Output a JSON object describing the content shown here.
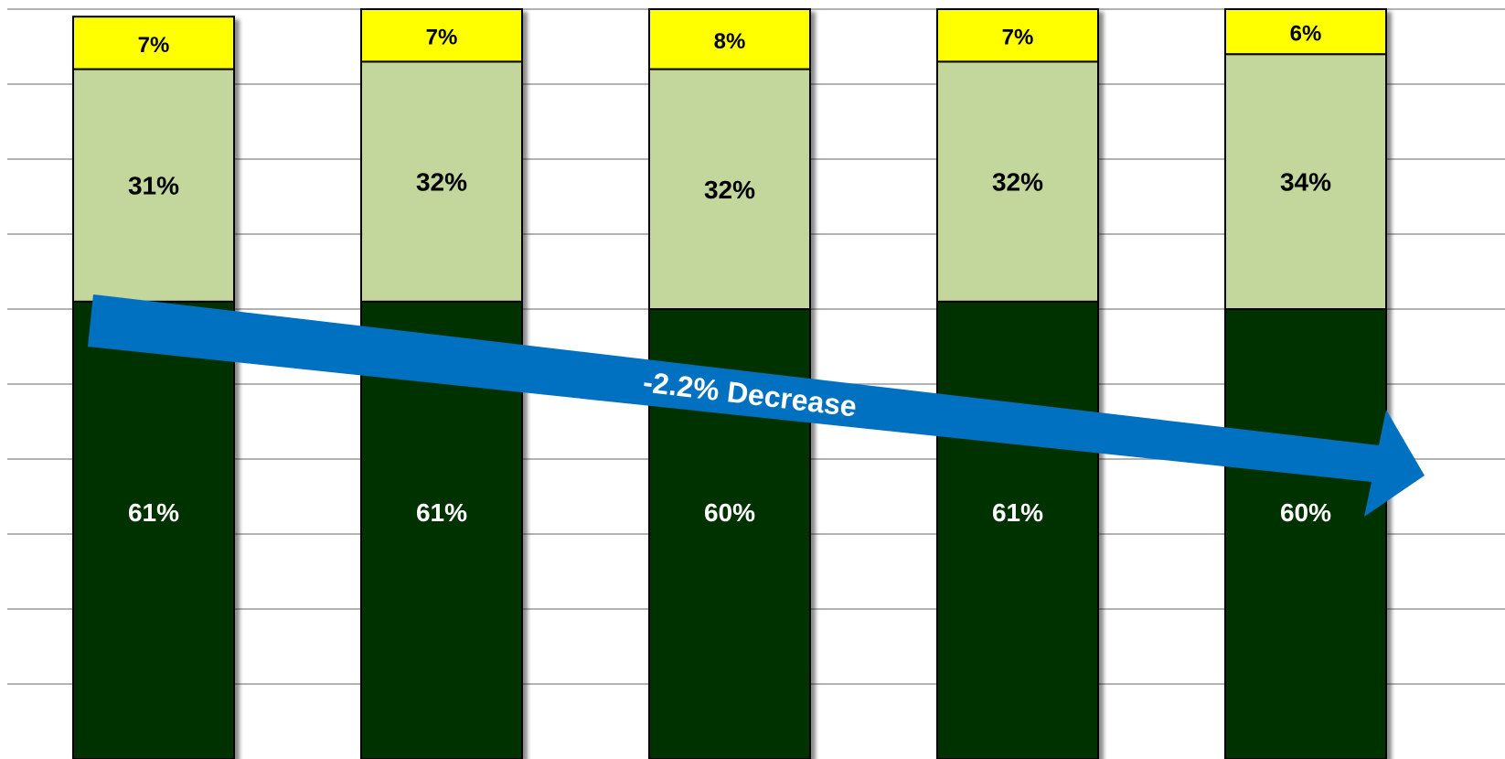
{
  "chart_data": {
    "type": "bar",
    "stacked": true,
    "orientation": "vertical",
    "ylim": [
      0,
      100
    ],
    "grid": true,
    "categories": [
      "",
      "",
      "",
      "",
      ""
    ],
    "series": [
      {
        "values": [
          61,
          61,
          60,
          61,
          60
        ],
        "labels": [
          "61%",
          "61%",
          "60%",
          "61%",
          "60%"
        ],
        "color": "#003300",
        "label_color": "#ffffff"
      },
      {
        "values": [
          31,
          32,
          32,
          32,
          34
        ],
        "labels": [
          "31%",
          "32%",
          "32%",
          "32%",
          "34%"
        ],
        "color": "#c3d69b",
        "label_color": "#000000"
      },
      {
        "values": [
          7,
          7,
          8,
          7,
          6
        ],
        "labels": [
          "7%",
          "7%",
          "8%",
          "7%",
          "6%"
        ],
        "color": "#ffff00",
        "label_color": "#000000"
      }
    ],
    "annotations": [
      {
        "type": "arrow",
        "text": "-2.2% Decrease",
        "color": "#0070c0",
        "text_color": "#ffffff"
      }
    ]
  }
}
